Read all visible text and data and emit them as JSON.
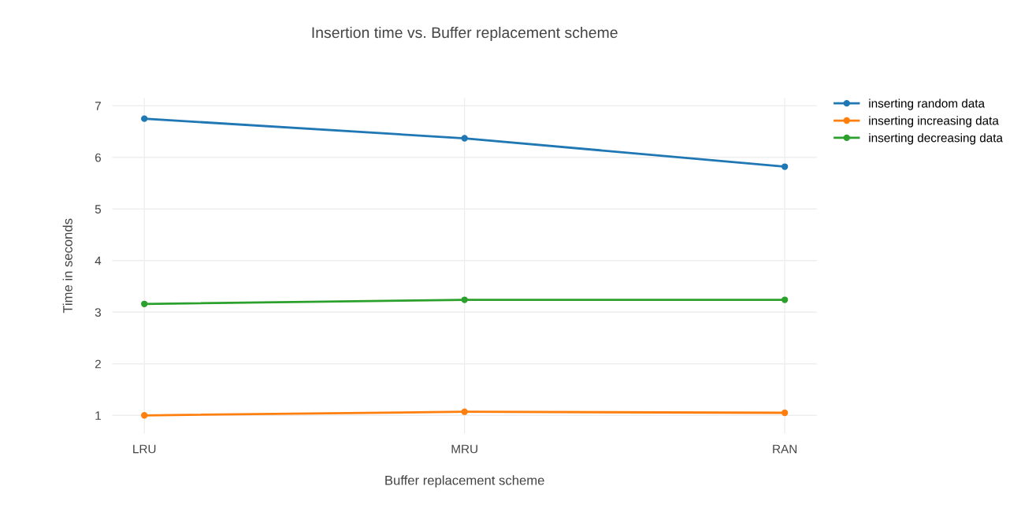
{
  "chart_data": {
    "type": "line",
    "title": "Insertion time vs. Buffer replacement scheme",
    "xlabel": "Buffer replacement scheme",
    "ylabel": "Time in seconds",
    "categories": [
      "LRU",
      "MRU",
      "RAN"
    ],
    "series": [
      {
        "name": "inserting random data",
        "color": "#1f77b4",
        "values": [
          6.75,
          6.37,
          5.82
        ]
      },
      {
        "name": "inserting increasing data",
        "color": "#ff7f0e",
        "values": [
          1.0,
          1.07,
          1.05
        ]
      },
      {
        "name": "inserting decreasing data",
        "color": "#2ca02c",
        "values": [
          3.16,
          3.24,
          3.24
        ]
      }
    ],
    "ylim": [
      0.65,
      7.15
    ],
    "yticks": [
      1,
      2,
      3,
      4,
      5,
      6,
      7
    ],
    "grid": true,
    "legend": "top right",
    "marker": "circle",
    "line_style": "solid"
  }
}
